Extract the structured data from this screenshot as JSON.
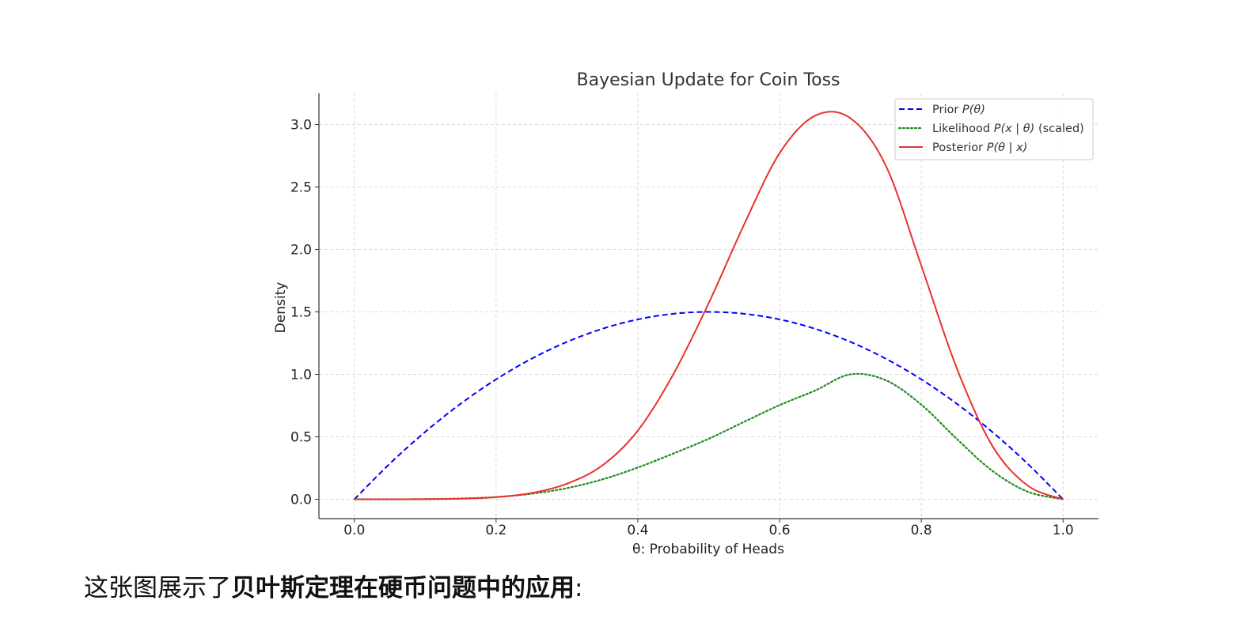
{
  "chart_data": {
    "type": "line",
    "title": "Bayesian Update for Coin Toss",
    "xlabel": "θ: Probability of Heads",
    "ylabel": "Density",
    "xlim": [
      -0.05,
      1.05
    ],
    "ylim": [
      -0.155,
      3.25
    ],
    "xticks": [
      0.0,
      0.2,
      0.4,
      0.6,
      0.8,
      1.0
    ],
    "xtick_labels": [
      "0.0",
      "0.2",
      "0.4",
      "0.6",
      "0.8",
      "1.0"
    ],
    "yticks": [
      0.0,
      0.5,
      1.0,
      1.5,
      2.0,
      2.5,
      3.0
    ],
    "ytick_labels": [
      "0.0",
      "0.5",
      "1.0",
      "1.5",
      "2.0",
      "2.5",
      "3.0"
    ],
    "grid": true,
    "legend_position": "top-right",
    "x": [
      0.0,
      0.05,
      0.1,
      0.15,
      0.2,
      0.25,
      0.3,
      0.35,
      0.4,
      0.45,
      0.5,
      0.55,
      0.6,
      0.65,
      0.7,
      0.75,
      0.8,
      0.85,
      0.9,
      0.95,
      1.0
    ],
    "series": [
      {
        "name": "Prior",
        "legend_label": {
          "before": "Prior ",
          "math": "P(θ)",
          "after": ""
        },
        "color": "#0000ff",
        "line_style": "dashed",
        "values": [
          0.0,
          0.285,
          0.54,
          0.765,
          0.96,
          1.125,
          1.26,
          1.365,
          1.44,
          1.485,
          1.5,
          1.485,
          1.44,
          1.365,
          1.26,
          1.125,
          0.96,
          0.765,
          0.54,
          0.285,
          0.0
        ]
      },
      {
        "name": "Likelihood",
        "legend_label": {
          "before": "Likelihood ",
          "math": "P(x | θ)",
          "after": " (scaled)"
        },
        "color": "#228b22",
        "line_style": "dotted",
        "values": [
          0.0,
          0.0,
          0.0015,
          0.0061,
          0.0183,
          0.0441,
          0.0893,
          0.1592,
          0.2541,
          0.3659,
          0.4844,
          0.6201,
          0.7535,
          0.87,
          1.0,
          0.9526,
          0.7573,
          0.4837,
          0.2286,
          0.0612,
          0.0
        ]
      },
      {
        "name": "Posterior",
        "legend_label": {
          "before": "Posterior ",
          "math": "P(θ | x)",
          "after": ""
        },
        "color": "#e8322b",
        "line_style": "solid",
        "values": [
          0.0,
          0.0,
          0.0012,
          0.0047,
          0.0168,
          0.0497,
          0.125,
          0.271,
          0.55,
          1.0,
          1.57,
          2.2,
          2.77,
          3.07,
          3.05,
          2.67,
          1.87,
          1.05,
          0.43,
          0.11,
          0.0
        ]
      }
    ]
  },
  "caption": {
    "normal": "这张图展示了",
    "bold": "贝叶斯定理在硬币问题中的应用",
    "end": ":"
  }
}
